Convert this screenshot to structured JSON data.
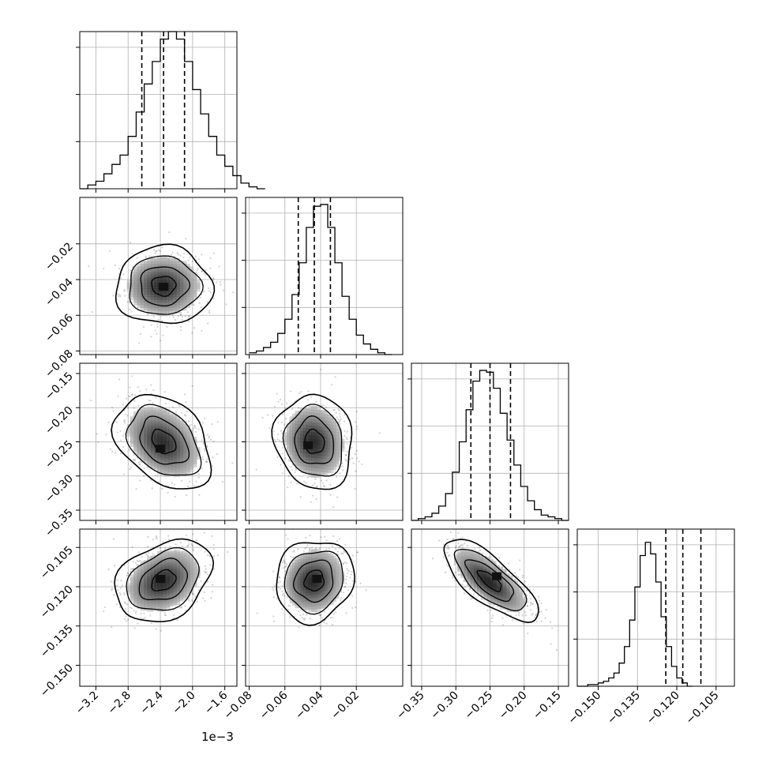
{
  "figure": {
    "offset_text": "1e−3",
    "colors": {
      "hist": "#000000",
      "grid": "#b0b0b0",
      "scatter": "#000000",
      "contour": "#000000"
    }
  },
  "chart_data": {
    "type": "corner",
    "grid": true,
    "quantiles": [
      0.16,
      0.5,
      0.84
    ],
    "parameters": [
      {
        "index": 0,
        "range": [
          -3.4,
          -1.45
        ],
        "x_ticks": [
          -3.2,
          -2.8,
          -2.4,
          -2.0,
          -1.6
        ],
        "x_tick_labels": [
          "−3.2",
          "−2.8",
          "−2.4",
          "−2.0",
          "−1.6"
        ],
        "offset_text": "1e−3",
        "quantile_values": [
          -2.63,
          -2.36,
          -2.1
        ],
        "hist": {
          "bin_start": -3.4,
          "bin_width": 0.1,
          "values": [
            0,
            2,
            4,
            8,
            13,
            18,
            28,
            41,
            56,
            68,
            80,
            84,
            80,
            68,
            53,
            40,
            28,
            18,
            12,
            7,
            3,
            1,
            0
          ]
        },
        "hist_ylim": [
          0,
          84
        ]
      },
      {
        "index": 1,
        "range": [
          -0.082,
          0.006
        ],
        "x_ticks": [
          -0.08,
          -0.06,
          -0.04,
          -0.02
        ],
        "x_tick_labels": [
          "−0.08",
          "−0.06",
          "−0.04",
          "−0.02"
        ],
        "y_ticks": [
          -0.08,
          -0.06,
          -0.04,
          -0.02
        ],
        "y_tick_labels": [
          "−0.08",
          "−0.06",
          "−0.04",
          "−0.02"
        ],
        "quantile_values": [
          -0.0525,
          -0.0435,
          -0.0345
        ],
        "hist": {
          "bin_start": -0.08,
          "bin_width": 0.004,
          "values": [
            1,
            2,
            4,
            7,
            12,
            20,
            34,
            52,
            72,
            84,
            85,
            72,
            52,
            33,
            20,
            11,
            6,
            3,
            1,
            0
          ]
        },
        "hist_ylim": [
          0,
          89
        ]
      },
      {
        "index": 2,
        "range": [
          -0.365,
          -0.135
        ],
        "x_ticks": [
          -0.35,
          -0.3,
          -0.25,
          -0.2,
          -0.15
        ],
        "x_tick_labels": [
          "−0.35",
          "−0.30",
          "−0.25",
          "−0.20",
          "−0.15"
        ],
        "y_ticks": [
          -0.35,
          -0.3,
          -0.25,
          -0.2,
          -0.15
        ],
        "y_tick_labels": [
          "−0.35",
          "−0.30",
          "−0.25",
          "−0.20",
          "−0.15"
        ],
        "quantile_values": [
          -0.278,
          -0.25,
          -0.22
        ],
        "hist": {
          "bin_start": -0.365,
          "bin_width": 0.01,
          "values": [
            0,
            1,
            2,
            4,
            8,
            15,
            27,
            44,
            62,
            78,
            84,
            83,
            74,
            60,
            45,
            31,
            19,
            11,
            6,
            3,
            2,
            1,
            0
          ]
        },
        "hist_ylim": [
          0,
          88
        ]
      },
      {
        "index": 3,
        "range": [
          -0.158,
          -0.098
        ],
        "x_ticks": [
          -0.15,
          -0.135,
          -0.12,
          -0.105
        ],
        "x_tick_labels": [
          "−0.150",
          "−0.135",
          "−0.120",
          "−0.105"
        ],
        "y_ticks": [
          -0.15,
          -0.135,
          -0.12,
          -0.105
        ],
        "y_tick_labels": [
          "−0.150",
          "−0.135",
          "−0.120",
          "−0.105"
        ],
        "quantile_values": [
          -0.1242,
          -0.1177,
          -0.1108
        ],
        "hist": {
          "bin_start": -0.158,
          "bin_width": 0.002,
          "values": [
            0,
            0,
            1,
            1,
            2,
            3,
            5,
            8,
            14,
            24,
            40,
            60,
            79,
            87,
            80,
            63,
            42,
            24,
            12,
            5,
            2,
            0
          ]
        },
        "hist_ylim": [
          0,
          95
        ]
      }
    ],
    "pairs": [
      {
        "x_param": 0,
        "y_param": 1,
        "mean": [
          -2.36,
          -0.0435
        ],
        "sd": [
          0.26,
          0.0095
        ],
        "rho": 0.0,
        "peak": [
          -2.36,
          -0.044
        ]
      },
      {
        "x_param": 0,
        "y_param": 2,
        "mean": [
          -2.36,
          -0.25
        ],
        "sd": [
          0.26,
          0.03
        ],
        "rho": -0.35,
        "peak": [
          -2.4,
          -0.26
        ]
      },
      {
        "x_param": 1,
        "y_param": 2,
        "mean": [
          -0.0435,
          -0.25
        ],
        "sd": [
          0.0095,
          0.03
        ],
        "rho": -0.1,
        "peak": [
          -0.047,
          -0.255
        ]
      },
      {
        "x_param": 0,
        "y_param": 3,
        "mean": [
          -2.36,
          -0.1177
        ],
        "sd": [
          0.26,
          0.0068
        ],
        "rho": 0.3,
        "peak": [
          -2.4,
          -0.117
        ]
      },
      {
        "x_param": 1,
        "y_param": 3,
        "mean": [
          -0.0435,
          -0.1177
        ],
        "sd": [
          0.0095,
          0.0068
        ],
        "rho": 0.1,
        "peak": [
          -0.042,
          -0.117
        ]
      },
      {
        "x_param": 2,
        "y_param": 3,
        "mean": [
          -0.25,
          -0.1177
        ],
        "sd": [
          0.03,
          0.0068
        ],
        "rho": -0.75,
        "peak": [
          -0.24,
          -0.116
        ]
      }
    ],
    "contour_levels_sigma": [
      0.5,
      1.0,
      1.5,
      2.0
    ]
  }
}
